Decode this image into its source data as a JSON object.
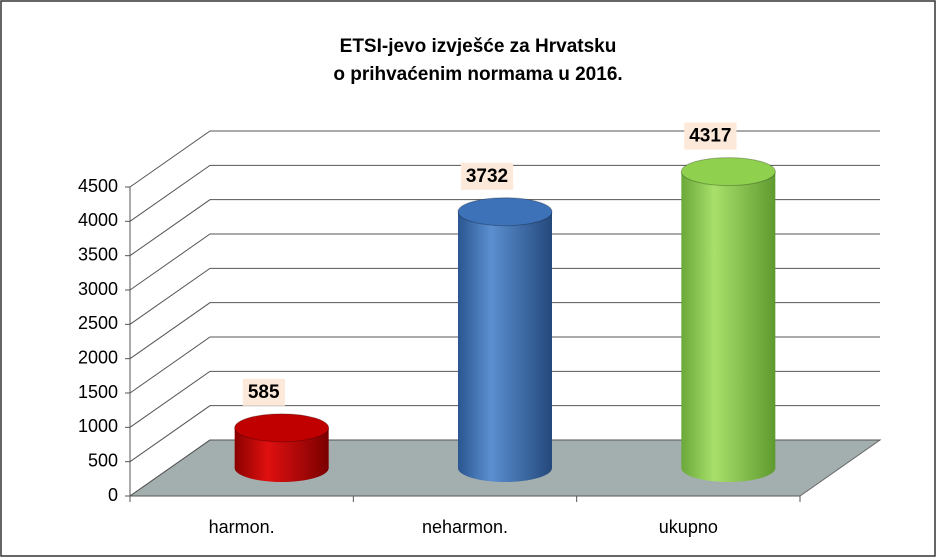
{
  "chart_data": {
    "type": "bar",
    "title": "ETSI-jevo izvješće za Hrvatsku",
    "subtitle": "o prihvaćenim normama u 2016.",
    "categories": [
      "harmon.",
      "neharmon.",
      "ukupno"
    ],
    "values": [
      585,
      3732,
      4317
    ],
    "colors": [
      "#c00000",
      "#3d72b8",
      "#8fd14f"
    ],
    "ylim": [
      0,
      4500
    ],
    "yticks": [
      0,
      500,
      1000,
      1500,
      2000,
      2500,
      3000,
      3500,
      4000,
      4500
    ],
    "grid": true
  }
}
